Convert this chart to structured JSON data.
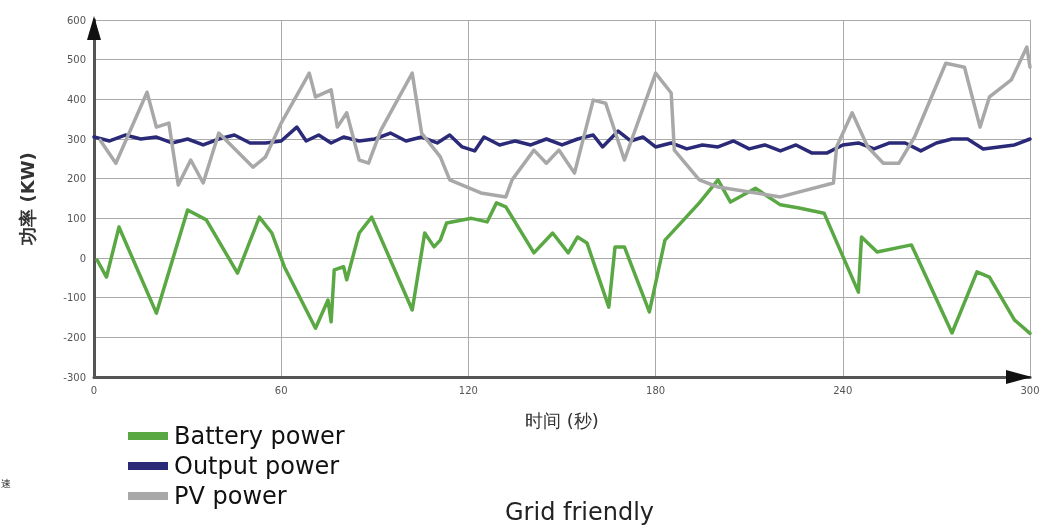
{
  "chart_data": {
    "type": "line",
    "xlabel": "时间 (秒)",
    "ylabel": "功率 (KW)",
    "xlim": [
      0,
      300
    ],
    "xticks": [
      0,
      60,
      120,
      180,
      240,
      300
    ],
    "ylim": [
      -300,
      600
    ],
    "yticks": [
      -300,
      -200,
      -100,
      0,
      100,
      200,
      300,
      400,
      500,
      600
    ],
    "grid": true,
    "legend": "bottom left",
    "marker": "none",
    "line_style": "solid",
    "annotations": [
      "Grid friendly",
      "速"
    ],
    "series": [
      {
        "name": "Battery power",
        "color": "#5aa843",
        "x": [
          1,
          4,
          8,
          20,
          30,
          36,
          46,
          53,
          57,
          61,
          71,
          75,
          76,
          77,
          80,
          81,
          85,
          89,
          102,
          106,
          109,
          111,
          113,
          121,
          126,
          129,
          132,
          141,
          147,
          152,
          155,
          158,
          165,
          167,
          170,
          178,
          183,
          194,
          200,
          204,
          212,
          220,
          226,
          234,
          245,
          246,
          251,
          262,
          275,
          283,
          287,
          295,
          300
        ],
        "values": [
          -5,
          -48,
          78,
          -139,
          121,
          96,
          -38,
          103,
          63,
          -22,
          -177,
          -106,
          -161,
          -30,
          -22,
          -55,
          63,
          103,
          -131,
          63,
          28,
          45,
          88,
          100,
          91,
          139,
          129,
          13,
          63,
          13,
          53,
          38,
          -124,
          28,
          28,
          -136,
          45,
          139,
          197,
          141,
          176,
          134,
          126,
          113,
          -86,
          53,
          15,
          33,
          -189,
          -35,
          -48,
          -156,
          -190
        ]
      },
      {
        "name": "Output power",
        "color": "#2b2a78",
        "x": [
          0,
          5,
          10,
          15,
          20,
          25,
          30,
          35,
          40,
          45,
          50,
          55,
          60,
          65,
          68,
          72,
          76,
          80,
          85,
          90,
          95,
          100,
          105,
          110,
          114,
          118,
          122,
          125,
          130,
          135,
          140,
          145,
          150,
          155,
          160,
          163,
          168,
          172,
          176,
          180,
          185,
          190,
          195,
          200,
          205,
          210,
          215,
          220,
          225,
          230,
          235,
          240,
          245,
          250,
          255,
          260,
          265,
          270,
          275,
          280,
          285,
          290,
          295,
          300
        ],
        "values": [
          305,
          295,
          310,
          300,
          305,
          290,
          300,
          285,
          300,
          310,
          290,
          290,
          295,
          330,
          295,
          310,
          290,
          305,
          295,
          300,
          315,
          295,
          305,
          290,
          310,
          280,
          270,
          305,
          285,
          295,
          285,
          300,
          285,
          300,
          310,
          280,
          320,
          295,
          305,
          280,
          290,
          275,
          285,
          280,
          295,
          275,
          285,
          270,
          285,
          265,
          265,
          285,
          290,
          275,
          290,
          290,
          270,
          290,
          300,
          300,
          275,
          280,
          285,
          300
        ]
      },
      {
        "name": "PV power",
        "color": "#a8a8a8",
        "x": [
          2,
          7,
          17,
          20,
          24,
          27,
          31,
          35,
          40,
          51,
          55,
          60,
          69,
          71,
          76,
          78,
          81,
          85,
          88,
          92,
          102,
          105,
          111,
          114,
          124,
          132,
          134,
          141,
          145,
          149,
          154,
          160,
          164,
          170,
          180,
          185,
          186,
          194,
          200,
          220,
          237,
          238,
          243,
          248,
          253,
          258,
          263,
          273,
          279,
          284,
          287,
          294,
          299,
          300
        ],
        "values": [
          297,
          239,
          418,
          330,
          340,
          184,
          247,
          189,
          315,
          229,
          255,
          340,
          466,
          406,
          424,
          330,
          366,
          247,
          239,
          323,
          466,
          315,
          255,
          197,
          164,
          154,
          197,
          272,
          239,
          272,
          214,
          398,
          390,
          247,
          466,
          416,
          272,
          197,
          179,
          154,
          189,
          280,
          366,
          280,
          239,
          239,
          305,
          491,
          481,
          330,
          406,
          449,
          532,
          481
        ]
      }
    ]
  }
}
